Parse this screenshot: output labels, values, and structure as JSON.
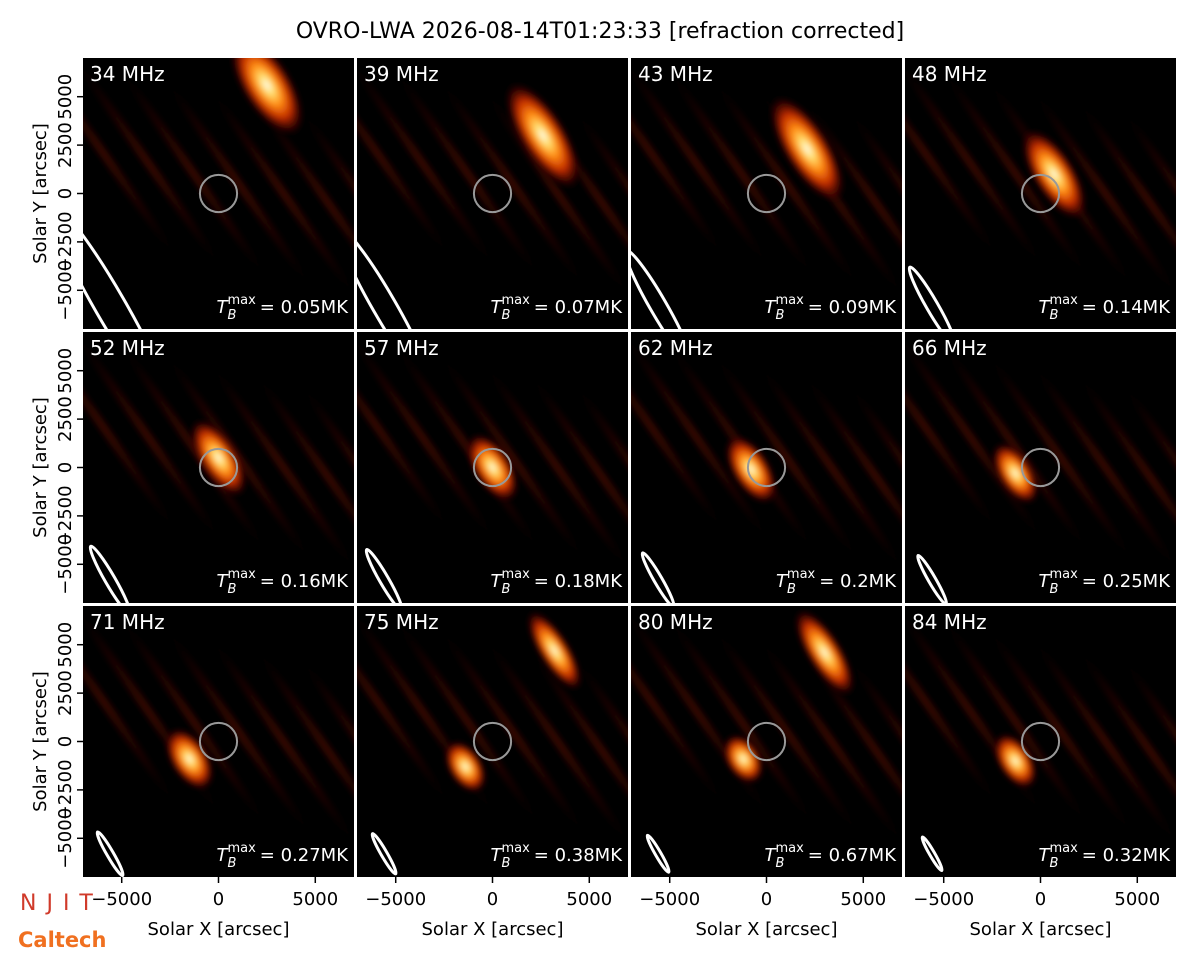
{
  "chart_data": {
    "type": "image-grid",
    "title": "OVRO-LWA 2026-08-14T01:23:33 [refraction corrected]",
    "x_label": "Solar X [arcsec]",
    "y_label": "Solar Y [arcsec]",
    "xlim": [
      -7000,
      7000
    ],
    "ylim": [
      -7000,
      7000
    ],
    "xticks": [
      {
        "value": -5000,
        "label": "−5000"
      },
      0,
      5000
    ],
    "yticks": [
      {
        "value": -5000,
        "label": "−5000"
      },
      {
        "value": -2500,
        "label": "−2500"
      },
      0,
      2500,
      5000
    ],
    "tb_symbol": "T",
    "tb_sub": "B",
    "tb_sup": "max",
    "panels": [
      {
        "label": "34 MHz",
        "tb_max": "= 0.05MK"
      },
      {
        "label": "39 MHz",
        "tb_max": "= 0.07MK"
      },
      {
        "label": "43 MHz",
        "tb_max": "= 0.09MK"
      },
      {
        "label": "48 MHz",
        "tb_max": "= 0.14MK"
      },
      {
        "label": "52 MHz",
        "tb_max": "= 0.16MK"
      },
      {
        "label": "57 MHz",
        "tb_max": "= 0.18MK"
      },
      {
        "label": "62 MHz",
        "tb_max": "= 0.2MK"
      },
      {
        "label": "66 MHz",
        "tb_max": "= 0.25MK"
      },
      {
        "label": "71 MHz",
        "tb_max": "= 0.27MK"
      },
      {
        "label": "75 MHz",
        "tb_max": "= 0.38MK"
      },
      {
        "label": "80 MHz",
        "tb_max": "= 0.67MK"
      },
      {
        "label": "84 MHz",
        "tb_max": "= 0.32MK"
      }
    ],
    "logos": [
      "NJIT",
      "Caltech"
    ]
  }
}
